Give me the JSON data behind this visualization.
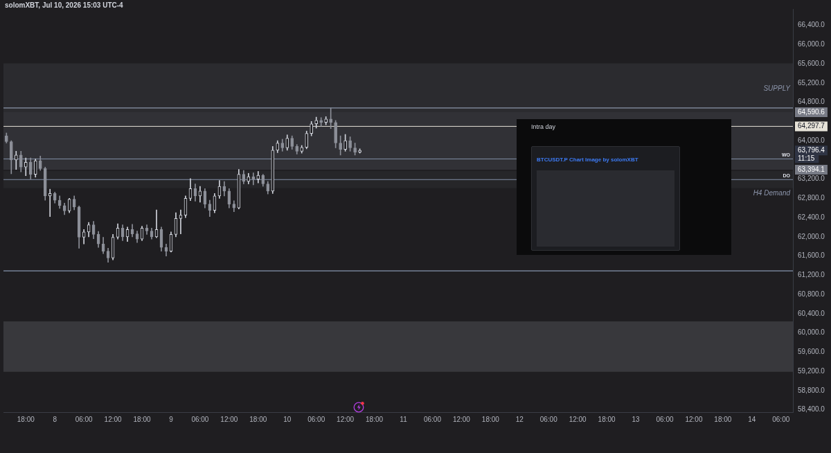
{
  "chart_data": {
    "type": "candlestick",
    "title": "solomXBT, Jul 10, 2026 15:03 UTC-4",
    "x": [
      "2026-07-07T14:00",
      "2026-07-07T15:00",
      "2026-07-07T16:00",
      "2026-07-07T17:00",
      "2026-07-07T18:00",
      "2026-07-07T19:00",
      "2026-07-07T20:00",
      "2026-07-07T21:00",
      "2026-07-07T22:00",
      "2026-07-07T23:00",
      "2026-07-08T00:00",
      "2026-07-08T01:00",
      "2026-07-08T02:00",
      "2026-07-08T03:00",
      "2026-07-08T04:00",
      "2026-07-08T05:00",
      "2026-07-08T06:00",
      "2026-07-08T07:00",
      "2026-07-08T08:00",
      "2026-07-08T09:00",
      "2026-07-08T10:00",
      "2026-07-08T11:00",
      "2026-07-08T12:00",
      "2026-07-08T13:00",
      "2026-07-08T14:00",
      "2026-07-08T15:00",
      "2026-07-08T16:00",
      "2026-07-08T17:00",
      "2026-07-08T18:00",
      "2026-07-08T19:00",
      "2026-07-08T20:00",
      "2026-07-08T21:00",
      "2026-07-08T22:00",
      "2026-07-08T23:00",
      "2026-07-09T00:00",
      "2026-07-09T01:00",
      "2026-07-09T02:00",
      "2026-07-09T03:00",
      "2026-07-09T04:00",
      "2026-07-09T05:00",
      "2026-07-09T06:00",
      "2026-07-09T07:00",
      "2026-07-09T08:00",
      "2026-07-09T09:00",
      "2026-07-09T10:00",
      "2026-07-09T11:00",
      "2026-07-09T12:00",
      "2026-07-09T13:00",
      "2026-07-09T14:00",
      "2026-07-09T15:00",
      "2026-07-09T16:00",
      "2026-07-09T17:00",
      "2026-07-09T18:00",
      "2026-07-09T19:00",
      "2026-07-09T20:00",
      "2026-07-09T21:00",
      "2026-07-09T22:00",
      "2026-07-09T23:00",
      "2026-07-10T00:00",
      "2026-07-10T01:00",
      "2026-07-10T02:00",
      "2026-07-10T03:00",
      "2026-07-10T04:00",
      "2026-07-10T05:00",
      "2026-07-10T06:00",
      "2026-07-10T07:00",
      "2026-07-10T08:00",
      "2026-07-10T09:00",
      "2026-07-10T10:00",
      "2026-07-10T11:00",
      "2026-07-10T12:00",
      "2026-07-10T13:00",
      "2026-07-10T14:00",
      "2026-07-10T15:00"
    ],
    "ohlc": [
      [
        64100,
        64160,
        63950,
        63980
      ],
      [
        63980,
        64000,
        63310,
        63600
      ],
      [
        63600,
        63780,
        63400,
        63700
      ],
      [
        63700,
        63780,
        63350,
        63450
      ],
      [
        63450,
        63640,
        63270,
        63550
      ],
      [
        63550,
        63640,
        63200,
        63300
      ],
      [
        63300,
        63620,
        63240,
        63580
      ],
      [
        63580,
        63680,
        63380,
        63420
      ],
      [
        63420,
        63450,
        62760,
        62850
      ],
      [
        62850,
        62990,
        62420,
        62900
      ],
      [
        62900,
        62930,
        62700,
        62760
      ],
      [
        62760,
        62850,
        62590,
        62650
      ],
      [
        62650,
        62700,
        62460,
        62540
      ],
      [
        62540,
        62800,
        62500,
        62780
      ],
      [
        62780,
        62850,
        62560,
        62620
      ],
      [
        62620,
        62640,
        61760,
        61990
      ],
      [
        61990,
        62150,
        61850,
        62100
      ],
      [
        62100,
        62300,
        62000,
        62250
      ],
      [
        62250,
        62320,
        61960,
        62050
      ],
      [
        62050,
        62110,
        61780,
        61850
      ],
      [
        61850,
        61990,
        61650,
        61700
      ],
      [
        61700,
        61760,
        61470,
        61560
      ],
      [
        61560,
        62050,
        61520,
        61990
      ],
      [
        61990,
        62270,
        61950,
        62180
      ],
      [
        62180,
        62250,
        61920,
        62000
      ],
      [
        62000,
        62200,
        61900,
        62150
      ],
      [
        62150,
        62260,
        62000,
        62060
      ],
      [
        62060,
        62120,
        61880,
        61950
      ],
      [
        61950,
        62220,
        61920,
        62180
      ],
      [
        62180,
        62250,
        62050,
        62120
      ],
      [
        62120,
        62180,
        61950,
        62000
      ],
      [
        62000,
        62560,
        61980,
        62150
      ],
      [
        62150,
        62200,
        61700,
        61780
      ],
      [
        61780,
        61850,
        61600,
        61700
      ],
      [
        61700,
        62100,
        61680,
        62050
      ],
      [
        62050,
        62500,
        62000,
        62380
      ],
      [
        62380,
        62560,
        62060,
        62450
      ],
      [
        62450,
        62850,
        62400,
        62800
      ],
      [
        62800,
        63210,
        62750,
        63000
      ],
      [
        63000,
        63100,
        62740,
        62850
      ],
      [
        62850,
        63050,
        62720,
        62950
      ],
      [
        62950,
        63000,
        62600,
        62680
      ],
      [
        62680,
        62760,
        62420,
        62550
      ],
      [
        62550,
        62900,
        62500,
        62850
      ],
      [
        62850,
        63170,
        62800,
        63050
      ],
      [
        63050,
        63150,
        62850,
        62950
      ],
      [
        62950,
        63000,
        62600,
        62680
      ],
      [
        62680,
        62750,
        62520,
        62600
      ],
      [
        62600,
        63400,
        62580,
        63300
      ],
      [
        63300,
        63380,
        63100,
        63150
      ],
      [
        63150,
        63320,
        63100,
        63250
      ],
      [
        63250,
        63330,
        63080,
        63200
      ],
      [
        63200,
        63360,
        63120,
        63280
      ],
      [
        63280,
        63300,
        63050,
        63100
      ],
      [
        63100,
        63150,
        62890,
        62950
      ],
      [
        62950,
        63880,
        62900,
        63800
      ],
      [
        63800,
        64000,
        63750,
        63950
      ],
      [
        63950,
        64030,
        63780,
        63850
      ],
      [
        63850,
        64120,
        63800,
        64050
      ],
      [
        64050,
        64100,
        63820,
        63880
      ],
      [
        63880,
        63920,
        63720,
        63780
      ],
      [
        63780,
        63900,
        63740,
        63860
      ],
      [
        63860,
        64200,
        63830,
        64150
      ],
      [
        64150,
        64400,
        64100,
        64350
      ],
      [
        64350,
        64490,
        64260,
        64420
      ],
      [
        64420,
        64480,
        64300,
        64380
      ],
      [
        64380,
        64500,
        64330,
        64450
      ],
      [
        64450,
        64680,
        64250,
        64380
      ],
      [
        64380,
        64420,
        63850,
        63950
      ],
      [
        63950,
        64100,
        63700,
        63820
      ],
      [
        63820,
        64130,
        63780,
        64000
      ],
      [
        64000,
        64080,
        63780,
        63850
      ],
      [
        63850,
        63950,
        63700,
        63760
      ],
      [
        63760,
        63830,
        63740,
        63796.4
      ]
    ],
    "colors": [
      "#8c8f98",
      "#8c8f98",
      "#d1d4dc",
      "#8c8f98",
      "#d1d4dc",
      "#8c8f98",
      "#d1d4dc",
      "#8c8f98",
      "#8c8f98",
      "#d1d4dc",
      "#8c8f98",
      "#8c8f98",
      "#8c8f98",
      "#d1d4dc",
      "#8c8f98",
      "#8c8f98",
      "#d1d4dc",
      "#d1d4dc",
      "#8c8f98",
      "#8c8f98",
      "#8c8f98",
      "#8c8f98",
      "#d1d4dc",
      "#d1d4dc",
      "#8c8f98",
      "#d1d4dc",
      "#8c8f98",
      "#8c8f98",
      "#d1d4dc",
      "#8c8f98",
      "#8c8f98",
      "#d1d4dc",
      "#8c8f98",
      "#8c8f98",
      "#d1d4dc",
      "#d1d4dc",
      "#d1d4dc",
      "#d1d4dc",
      "#d1d4dc",
      "#8c8f98",
      "#d1d4dc",
      "#8c8f98",
      "#8c8f98",
      "#d1d4dc",
      "#d1d4dc",
      "#8c8f98",
      "#8c8f98",
      "#8c8f98",
      "#d1d4dc",
      "#8c8f98",
      "#d1d4dc",
      "#8c8f98",
      "#d1d4dc",
      "#8c8f98",
      "#8c8f98",
      "#d1d4dc",
      "#d1d4dc",
      "#8c8f98",
      "#d1d4dc",
      "#8c8f98",
      "#8c8f98",
      "#d1d4dc",
      "#d1d4dc",
      "#d1d4dc",
      "#d1d4dc",
      "#8c8f98",
      "#d1d4dc",
      "#8c8f98",
      "#8c8f98",
      "#8c8f98",
      "#d1d4dc",
      "#8c8f98",
      "#8c8f98",
      "#d1d4dc"
    ],
    "xlim": [
      "2026-07-07T13:23",
      "2026-07-14T08:28"
    ],
    "xticks": [
      {
        "value": "2026-07-07T18:00",
        "label": "18:00"
      },
      {
        "value": "2026-07-08T00:00",
        "label": "8"
      },
      {
        "value": "2026-07-08T06:00",
        "label": "06:00"
      },
      {
        "value": "2026-07-08T12:00",
        "label": "12:00"
      },
      {
        "value": "2026-07-08T18:00",
        "label": "18:00"
      },
      {
        "value": "2026-07-09T00:00",
        "label": "9"
      },
      {
        "value": "2026-07-09T06:00",
        "label": "06:00"
      },
      {
        "value": "2026-07-09T12:00",
        "label": "12:00"
      },
      {
        "value": "2026-07-09T18:00",
        "label": "18:00"
      },
      {
        "value": "2026-07-10T00:00",
        "label": "10"
      },
      {
        "value": "2026-07-10T06:00",
        "label": "06:00"
      },
      {
        "value": "2026-07-10T12:00",
        "label": "12:00"
      },
      {
        "value": "2026-07-10T18:00",
        "label": "18:00"
      },
      {
        "value": "2026-07-11T00:00",
        "label": "11"
      },
      {
        "value": "2026-07-11T06:00",
        "label": "06:00"
      },
      {
        "value": "2026-07-11T12:00",
        "label": "12:00"
      },
      {
        "value": "2026-07-11T18:00",
        "label": "18:00"
      },
      {
        "value": "2026-07-12T00:00",
        "label": "12"
      },
      {
        "value": "2026-07-12T06:00",
        "label": "06:00"
      },
      {
        "value": "2026-07-12T12:00",
        "label": "12:00"
      },
      {
        "value": "2026-07-12T18:00",
        "label": "18:00"
      },
      {
        "value": "2026-07-13T00:00",
        "label": "13"
      },
      {
        "value": "2026-07-13T06:00",
        "label": "06:00"
      },
      {
        "value": "2026-07-13T12:00",
        "label": "12:00"
      },
      {
        "value": "2026-07-13T18:00",
        "label": "18:00"
      },
      {
        "value": "2026-07-14T00:00",
        "label": "14"
      },
      {
        "value": "2026-07-14T06:00",
        "label": "06:00"
      }
    ],
    "ylim": [
      58350,
      66740
    ],
    "yticks": [
      {
        "value": 58400,
        "label": "58,400.0"
      },
      {
        "value": 58800,
        "label": "58,800.0"
      },
      {
        "value": 59200,
        "label": "59,200.0"
      },
      {
        "value": 59600,
        "label": "59,600.0"
      },
      {
        "value": 60000,
        "label": "60,000.0"
      },
      {
        "value": 60400,
        "label": "60,400.0"
      },
      {
        "value": 60800,
        "label": "60,800.0"
      },
      {
        "value": 61200,
        "label": "61,200.0"
      },
      {
        "value": 61600,
        "label": "61,600.0"
      },
      {
        "value": 62000,
        "label": "62,000.0"
      },
      {
        "value": 62400,
        "label": "62,400.0"
      },
      {
        "value": 62800,
        "label": "62,800.0"
      },
      {
        "value": 63200,
        "label": "63,200.0"
      },
      {
        "value": 63394.1,
        "label": "63,394.1"
      },
      {
        "value": 63796.4,
        "label": "63,796.4"
      },
      {
        "value": 64000,
        "label": "64,000.0"
      },
      {
        "value": 64297.7,
        "label": "64,297.7"
      },
      {
        "value": 64590.6,
        "label": "64,590.6"
      },
      {
        "value": 64800,
        "label": "64,800.0"
      },
      {
        "value": 65200,
        "label": "65,200.0"
      },
      {
        "value": 65600,
        "label": "65,600.0"
      },
      {
        "value": 66000,
        "label": "66,000.0"
      },
      {
        "value": 66400,
        "label": "66,400.0"
      }
    ],
    "bands": [
      {
        "axis": "y",
        "from": 64540,
        "to": 65610,
        "label": "SUPPLY",
        "color": "#2b2b2f"
      },
      {
        "axis": "y",
        "from": 63394.1,
        "to": 64590.6,
        "color": "#313136"
      },
      {
        "axis": "y",
        "from": 63010,
        "to": 63370,
        "label": "H4 Demand",
        "color": "#262629"
      },
      {
        "axis": "y",
        "from": 59190,
        "to": 60240,
        "color": "#38383c"
      }
    ],
    "ref_lines": [
      {
        "axis": "y",
        "value": 64680,
        "color": "#a3b1c9"
      },
      {
        "axis": "y",
        "value": 64297.7,
        "color": "#e6e2d8"
      },
      {
        "axis": "y",
        "value": 63620,
        "label": "WO",
        "color": "#8390a8"
      },
      {
        "axis": "y",
        "value": 63190,
        "label": "DO",
        "color": "#8390a8"
      },
      {
        "axis": "y",
        "value": 61290,
        "color": "#9fb3d1"
      }
    ],
    "annotations": [
      "Intra day",
      "BTCUSDT.P Chart Image by solomXBT",
      "11:15"
    ]
  }
}
